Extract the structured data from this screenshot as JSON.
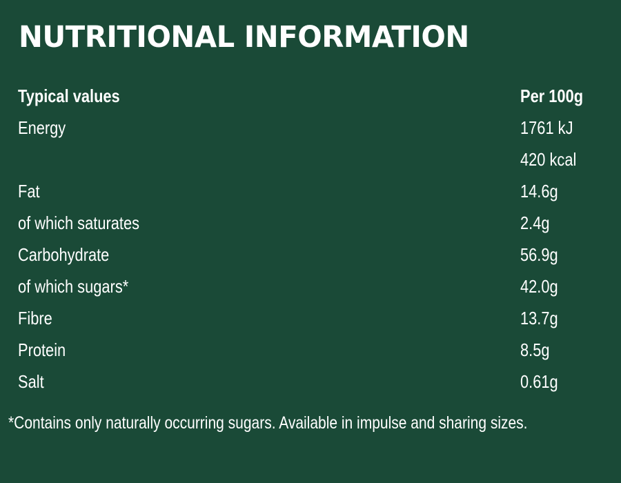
{
  "title": "NUTRITIONAL INFORMATION",
  "header": {
    "label": "Typical values",
    "value": "Per 100g"
  },
  "rows": [
    {
      "label": "Energy",
      "value": "1761 kJ"
    },
    {
      "label": "",
      "value": "420 kcal"
    },
    {
      "label": "Fat",
      "value": "14.6g"
    },
    {
      "label": "of which saturates",
      "value": "2.4g"
    },
    {
      "label": "Carbohydrate",
      "value": "56.9g"
    },
    {
      "label": "of which sugars*",
      "value": "42.0g"
    },
    {
      "label": "Fibre",
      "value": "13.7g"
    },
    {
      "label": "Protein",
      "value": "8.5g"
    },
    {
      "label": "Salt",
      "value": "0.61g"
    }
  ],
  "footnote": "*Contains only naturally occurring sugars. Available in impulse and sharing sizes.",
  "colors": {
    "background": "#1a4a37",
    "text": "#ffffff"
  }
}
